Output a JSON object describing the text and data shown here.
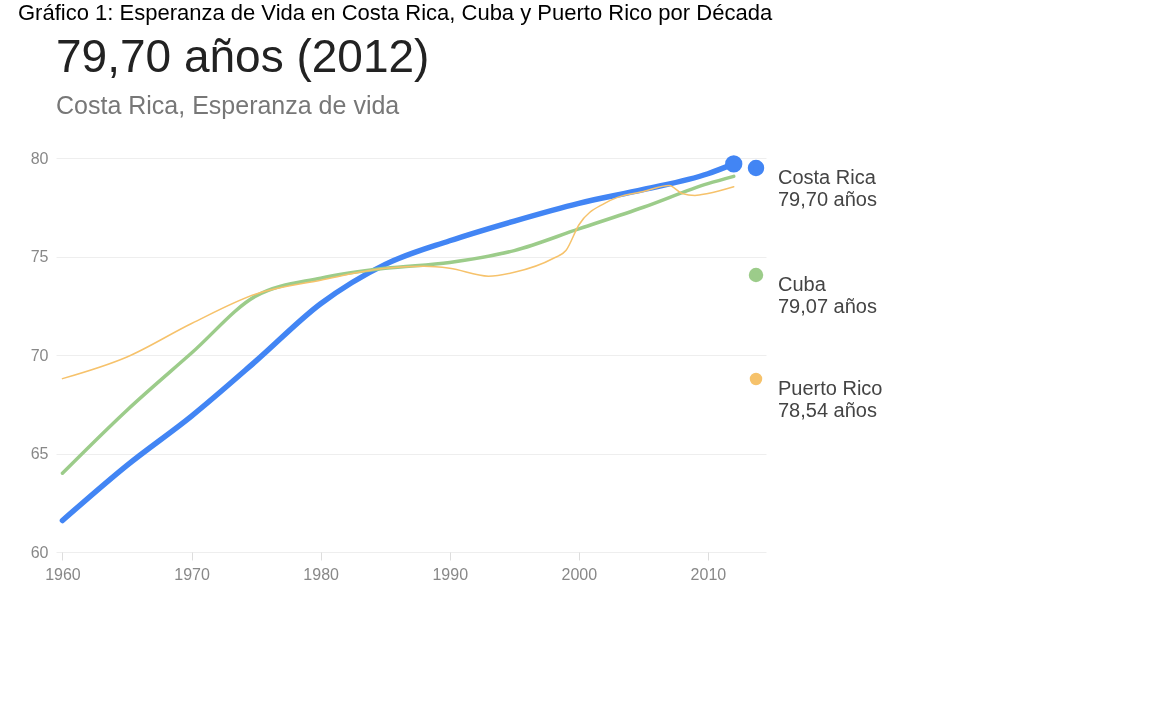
{
  "chart_data": {
    "type": "line",
    "title": "79,70 años (2012)",
    "subtitle": "Costa Rica, Esperanza de vida",
    "annotations": [
      "Gráfico 1: Esperanza de Vida en Costa Rica, Cuba y Puerto Rico por Década",
      "79,70 años",
      "79,07 años",
      "78,54 años"
    ],
    "x": [
      1960,
      1965,
      1970,
      1975,
      1980,
      1985,
      1990,
      1995,
      2000,
      2005,
      2010,
      2012
    ],
    "series": [
      {
        "name": "Costa Rica",
        "color": "#4285f4",
        "values": [
          61.6,
          64.4,
          66.9,
          69.7,
          72.6,
          74.6,
          75.8,
          76.8,
          77.7,
          78.4,
          79.2,
          79.7
        ]
      },
      {
        "name": "Cuba",
        "color": "#9ccc8a",
        "values": [
          64.0,
          67.2,
          70.1,
          73.0,
          73.9,
          74.4,
          74.7,
          75.3,
          76.4,
          77.5,
          78.7,
          79.07
        ]
      },
      {
        "name": "Puerto Rico",
        "color": "#f6c26b",
        "x": [
          1960,
          1965,
          1970,
          1975,
          1980,
          1985,
          1988,
          1990,
          1993,
          1995,
          1998,
          1999,
          2000,
          2002,
          2003,
          2005,
          2007,
          2008,
          2009,
          2010,
          2012
        ],
        "values": [
          68.8,
          69.9,
          71.6,
          73.1,
          73.8,
          74.4,
          74.5,
          74.4,
          74.0,
          74.2,
          74.9,
          75.3,
          76.6,
          77.7,
          78.0,
          78.3,
          78.6,
          78.2,
          78.1,
          78.2,
          78.54
        ]
      }
    ],
    "xlim": [
      1959.5,
      2014.5
    ],
    "xticks": [
      1960,
      1970,
      1980,
      1990,
      2000,
      2010
    ],
    "ylim": [
      60,
      80
    ],
    "yticks": [
      60,
      65,
      70,
      75,
      80
    ],
    "grid": "y",
    "legend": "right"
  }
}
